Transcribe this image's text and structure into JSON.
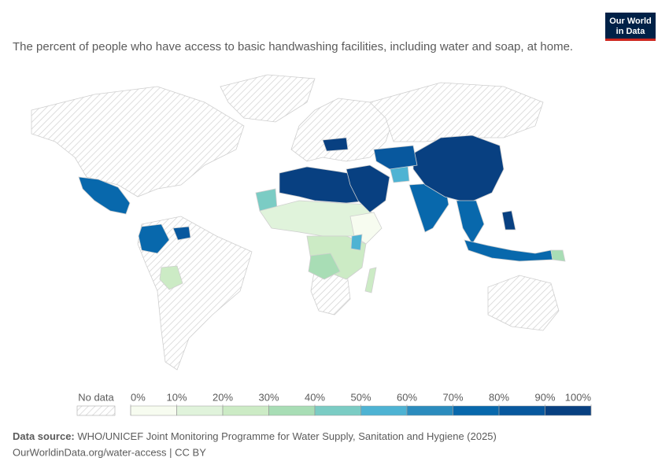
{
  "logo": {
    "line1": "Our World",
    "line2": "in Data"
  },
  "subtitle": "The percent of people who have access to basic handwashing facilities, including water and soap, at home.",
  "legend": {
    "no_data_label": "No data",
    "ticks": [
      {
        "value": 0,
        "label": "0%"
      },
      {
        "value": 10,
        "label": "10%"
      },
      {
        "value": 20,
        "label": "20%"
      },
      {
        "value": 30,
        "label": "30%"
      },
      {
        "value": 40,
        "label": "40%"
      },
      {
        "value": 50,
        "label": "50%"
      },
      {
        "value": 60,
        "label": "60%"
      },
      {
        "value": 70,
        "label": "70%"
      },
      {
        "value": 80,
        "label": "80%"
      },
      {
        "value": 90,
        "label": "90%"
      },
      {
        "value": 100,
        "label": "100%"
      }
    ],
    "colors": [
      "#f7fcf0",
      "#e0f3db",
      "#ccebc5",
      "#a8ddb5",
      "#7bccc4",
      "#4eb3d3",
      "#2b8cbe",
      "#0868ac",
      "#08589e",
      "#084081"
    ]
  },
  "footer": {
    "source_label": "Data source:",
    "source_text": "WHO/UNICEF Joint Monitoring Programme for Water Supply, Sanitation and Hygiene (2025)",
    "url": "OurWorldinData.org/water-access | CC BY"
  }
}
